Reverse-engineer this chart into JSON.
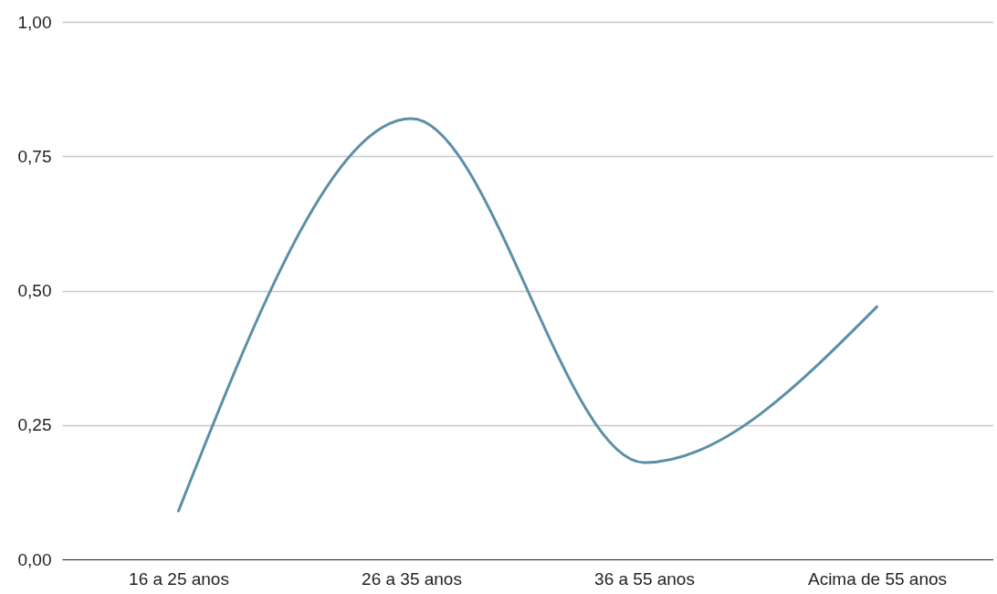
{
  "chart_data": {
    "type": "line",
    "categories": [
      "16 a 25 anos",
      "26 a 35 anos",
      "36 a 55 anos",
      "Acima de 55 anos"
    ],
    "series": [
      {
        "color": "#5b8fa8",
        "values": [
          0.09,
          0.82,
          0.18,
          0.47
        ]
      }
    ],
    "ylim": [
      0,
      1
    ],
    "yticks": [
      {
        "value": 0,
        "label": "0,00"
      },
      {
        "value": 0.25,
        "label": "0,25"
      },
      {
        "value": 0.5,
        "label": "0,50"
      },
      {
        "value": 0.75,
        "label": "0,75"
      },
      {
        "value": 1,
        "label": "1,00"
      }
    ],
    "grid": "y",
    "marker": "none",
    "line_style": "solid"
  }
}
